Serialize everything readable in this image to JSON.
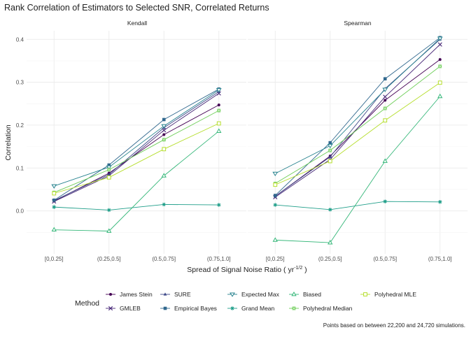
{
  "title": "Rank Correlation of Estimators to Selected SNR, Correlated Returns",
  "caption": "Points based on between 22,200 and 24,720 simulations.",
  "legend_title": "Method",
  "chart_data": {
    "type": "line",
    "xlabel": "Spread of Signal Noise Ratio ( yr",
    "xlabel_exp": "-1/2",
    "xlabel_end": " )",
    "ylabel": "Correlation",
    "ylim": [
      -0.1,
      0.42
    ],
    "yticks": [
      0.0,
      0.1,
      0.2,
      0.3,
      0.4
    ],
    "ytick_labels": [
      "0.0",
      "0.1",
      "0.2",
      "0.3",
      "0.4"
    ],
    "grid": true,
    "legend_position": "bottom",
    "categories": [
      "[0,0.25]",
      "(0.25,0.5]",
      "(0.5,0.75]",
      "(0.75,1.0]"
    ],
    "panels": [
      "Kendall",
      "Spearman"
    ],
    "series": [
      {
        "name": "James Stein",
        "color": "#440154",
        "marker": "dot",
        "values": {
          "Kendall": [
            0.023,
            0.088,
            0.178,
            0.247
          ],
          "Spearman": [
            0.034,
            0.128,
            0.258,
            0.353
          ]
        }
      },
      {
        "name": "GMLEB",
        "color": "#482878",
        "marker": "x",
        "values": {
          "Kendall": [
            0.022,
            0.082,
            0.188,
            0.274
          ],
          "Spearman": [
            0.032,
            0.12,
            0.266,
            0.388
          ]
        }
      },
      {
        "name": "SURE",
        "color": "#3e4989",
        "marker": "triangle",
        "values": {
          "Kendall": [
            0.024,
            0.085,
            0.194,
            0.278
          ],
          "Spearman": [
            0.034,
            0.126,
            0.285,
            0.4
          ]
        }
      },
      {
        "name": "Empirical Bayes",
        "color": "#31688e",
        "marker": "square",
        "values": {
          "Kendall": [
            0.025,
            0.107,
            0.213,
            0.284
          ],
          "Spearman": [
            0.036,
            0.159,
            0.308,
            0.404
          ]
        }
      },
      {
        "name": "Expected Max",
        "color": "#26828e",
        "marker": "triangle-down",
        "values": {
          "Kendall": [
            0.058,
            0.102,
            0.198,
            0.282
          ],
          "Spearman": [
            0.087,
            0.152,
            0.283,
            0.402
          ]
        }
      },
      {
        "name": "Grand Mean",
        "color": "#1f9e89",
        "marker": "star",
        "values": {
          "Kendall": [
            0.009,
            0.002,
            0.015,
            0.014
          ],
          "Spearman": [
            0.014,
            0.003,
            0.022,
            0.021
          ]
        }
      },
      {
        "name": "Biased",
        "color": "#35b779",
        "marker": "triangle-open",
        "values": {
          "Kendall": [
            -0.044,
            -0.047,
            0.082,
            0.186
          ],
          "Spearman": [
            -0.068,
            -0.074,
            0.116,
            0.267
          ]
        }
      },
      {
        "name": "Polyhedral Median",
        "color": "#6ece58",
        "marker": "square-x",
        "values": {
          "Kendall": [
            0.043,
            0.096,
            0.166,
            0.234
          ],
          "Spearman": [
            0.064,
            0.141,
            0.239,
            0.337
          ]
        }
      },
      {
        "name": "Polyhedral MLE",
        "color": "#b5de2b",
        "marker": "square-open",
        "values": {
          "Kendall": [
            0.041,
            0.078,
            0.144,
            0.204
          ],
          "Spearman": [
            0.061,
            0.116,
            0.211,
            0.299
          ]
        }
      }
    ]
  }
}
